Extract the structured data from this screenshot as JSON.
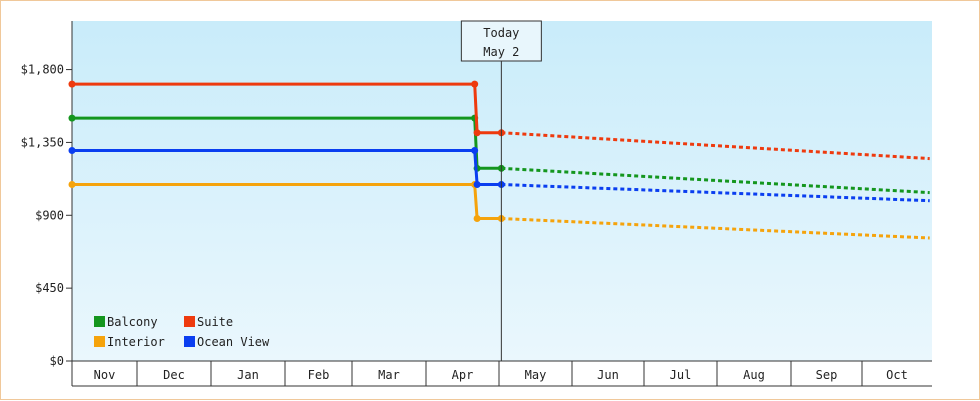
{
  "chart_data": {
    "type": "line",
    "x_categories": [
      "Nov",
      "Dec",
      "Jan",
      "Feb",
      "Mar",
      "Apr",
      "May",
      "Jun",
      "Jul",
      "Aug",
      "Sep",
      "Oct"
    ],
    "y_ticks": [
      {
        "value": 0,
        "label": "$0"
      },
      {
        "value": 450,
        "label": "$450"
      },
      {
        "value": 900,
        "label": "$900"
      },
      {
        "value": 1350,
        "label": "$1,350"
      },
      {
        "value": 1800,
        "label": "$1,800"
      }
    ],
    "ylim": [
      0,
      2100
    ],
    "today_marker": {
      "line1": "Today",
      "line2": "May 2"
    },
    "legend_placement": "bottom-left",
    "colors": {
      "Balcony": "#14961e",
      "Suite": "#ee3a0e",
      "Interior": "#f5a30c",
      "Ocean View": "#0a3ef0"
    },
    "series": [
      {
        "name": "Balcony",
        "historical": [
          {
            "x": "Nov 1",
            "y": 1500
          },
          {
            "x": "Apr 21",
            "y": 1500
          },
          {
            "x": "Apr 22",
            "y": 1190
          },
          {
            "x": "May 2",
            "y": 1190
          }
        ],
        "projected": [
          {
            "x": "May 2",
            "y": 1190
          },
          {
            "x": "Oct 31",
            "y": 1040
          }
        ]
      },
      {
        "name": "Suite",
        "historical": [
          {
            "x": "Nov 1",
            "y": 1710
          },
          {
            "x": "Apr 21",
            "y": 1710
          },
          {
            "x": "Apr 22",
            "y": 1410
          },
          {
            "x": "May 2",
            "y": 1410
          }
        ],
        "projected": [
          {
            "x": "May 2",
            "y": 1410
          },
          {
            "x": "Oct 31",
            "y": 1250
          }
        ]
      },
      {
        "name": "Interior",
        "historical": [
          {
            "x": "Nov 1",
            "y": 1090
          },
          {
            "x": "Apr 21",
            "y": 1090
          },
          {
            "x": "Apr 22",
            "y": 880
          },
          {
            "x": "May 2",
            "y": 880
          }
        ],
        "projected": [
          {
            "x": "May 2",
            "y": 880
          },
          {
            "x": "Oct 31",
            "y": 760
          }
        ]
      },
      {
        "name": "Ocean View",
        "historical": [
          {
            "x": "Nov 1",
            "y": 1300
          },
          {
            "x": "Apr 21",
            "y": 1300
          },
          {
            "x": "Apr 22",
            "y": 1090
          },
          {
            "x": "May 2",
            "y": 1090
          }
        ],
        "projected": [
          {
            "x": "May 2",
            "y": 1090
          },
          {
            "x": "Oct 31",
            "y": 990
          }
        ]
      }
    ],
    "legend_order": [
      "Balcony",
      "Suite",
      "Interior",
      "Ocean View"
    ],
    "grid": false
  }
}
